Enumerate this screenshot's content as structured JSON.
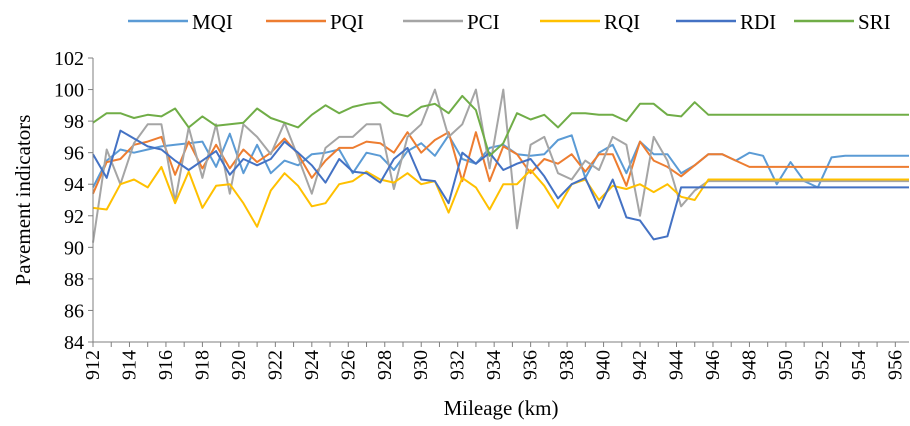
{
  "chart_data": {
    "type": "line",
    "xlabel": "Mileage (km)",
    "ylabel": "Pavement indicators",
    "xlim": [
      912,
      956.75
    ],
    "ylim": [
      84,
      102
    ],
    "y_ticks": [
      84,
      86,
      88,
      90,
      92,
      94,
      96,
      98,
      100,
      102
    ],
    "y_tick_labels": [
      "84",
      "86",
      "88",
      "90",
      "92",
      "94",
      "96",
      "98",
      "100",
      "102"
    ],
    "x_ticks": [
      912,
      914,
      916,
      918,
      920,
      922,
      924,
      926,
      928,
      930,
      932,
      934,
      936,
      938,
      940,
      942,
      944,
      946,
      948,
      950,
      952,
      954,
      956
    ],
    "x_tick_labels": [
      "912",
      "914",
      "916",
      "918",
      "920",
      "922",
      "924",
      "926",
      "928",
      "930",
      "932",
      "934",
      "936",
      "938",
      "940",
      "942",
      "944",
      "946",
      "948",
      "950",
      "952",
      "954",
      "956"
    ],
    "grid": false,
    "legend_position": "top",
    "x": [
      912,
      912.75,
      913.5,
      914.25,
      915,
      915.75,
      916.5,
      917.25,
      918,
      918.75,
      919.5,
      920.25,
      921,
      921.75,
      922.5,
      923.25,
      924,
      924.75,
      925.5,
      926.25,
      927,
      927.75,
      928.5,
      929.25,
      930,
      930.75,
      931.5,
      932.25,
      933,
      933.75,
      934.5,
      935.25,
      936,
      936.75,
      937.5,
      938.25,
      939,
      939.75,
      940.5,
      941.25,
      942,
      942.75,
      943.5,
      944.25,
      945,
      945.75,
      946.5,
      947.25,
      948,
      948.75,
      949.5,
      950.25,
      951,
      951.75,
      952.5,
      953.25,
      954,
      954.75,
      955.5,
      956.25,
      956.75
    ],
    "series": [
      {
        "name": "MQI",
        "color": "#5b9bd5",
        "values": [
          93.8,
          95.5,
          96.2,
          96.0,
          96.2,
          96.4,
          96.5,
          96.6,
          96.7,
          95.1,
          97.2,
          94.7,
          96.5,
          94.7,
          95.5,
          95.2,
          95.9,
          96.0,
          96.2,
          94.7,
          96.0,
          95.8,
          94.9,
          96.1,
          96.6,
          95.8,
          97.1,
          95.6,
          95.3,
          96.3,
          96.5,
          95.9,
          95.8,
          95.9,
          96.8,
          97.1,
          94.4,
          96.0,
          96.5,
          94.7,
          96.7,
          95.9,
          95.9,
          94.7,
          95.2,
          95.9,
          95.9,
          95.5,
          96.0,
          95.8,
          94.0,
          95.4,
          94.2,
          93.8,
          95.7,
          95.8,
          95.8,
          95.8,
          95.8,
          95.8,
          95.8
        ]
      },
      {
        "name": "PQI",
        "color": "#ed7d31",
        "values": [
          93.4,
          95.4,
          95.6,
          96.5,
          96.7,
          97.0,
          94.6,
          96.7,
          95.0,
          96.5,
          95.0,
          96.2,
          95.4,
          96.0,
          96.9,
          95.9,
          94.4,
          95.5,
          96.3,
          96.3,
          96.7,
          96.6,
          96.0,
          97.3,
          96.0,
          96.8,
          97.3,
          94.2,
          97.3,
          94.2,
          96.4,
          95.9,
          94.7,
          95.6,
          95.3,
          95.9,
          94.8,
          95.9,
          95.9,
          93.9,
          96.7,
          95.5,
          95.1,
          94.5,
          95.2,
          95.9,
          95.9,
          95.5,
          95.1,
          95.1,
          95.1,
          95.1,
          95.1,
          95.1,
          95.1,
          95.1,
          95.1,
          95.1,
          95.1,
          95.1,
          95.1
        ]
      },
      {
        "name": "PCI",
        "color": "#a5a5a5",
        "values": [
          90.3,
          96.2,
          94.0,
          96.6,
          97.8,
          97.8,
          92.9,
          97.6,
          94.4,
          97.8,
          93.4,
          97.8,
          97.0,
          95.9,
          97.9,
          95.7,
          93.4,
          96.3,
          97.0,
          97.0,
          97.8,
          97.8,
          93.7,
          97.0,
          97.8,
          100.0,
          97.0,
          97.8,
          100.0,
          95.0,
          100.0,
          91.2,
          96.5,
          97.0,
          94.7,
          94.3,
          95.5,
          94.9,
          97.0,
          96.5,
          92.0,
          97.0,
          95.5,
          92.6,
          93.6,
          94.2,
          94.2,
          94.2,
          94.2,
          94.2,
          94.2,
          94.2,
          94.2,
          94.2,
          94.2,
          94.2,
          94.2,
          94.2,
          94.2,
          94.2,
          94.2
        ]
      },
      {
        "name": "RQI",
        "color": "#ffc000",
        "values": [
          92.5,
          92.4,
          94.0,
          94.3,
          93.8,
          95.1,
          92.8,
          94.8,
          92.5,
          93.9,
          94.0,
          92.8,
          91.3,
          93.6,
          94.7,
          93.9,
          92.6,
          92.8,
          94.0,
          94.2,
          94.8,
          94.3,
          94.1,
          94.7,
          94.0,
          94.2,
          92.2,
          94.4,
          93.8,
          92.4,
          94.0,
          94.0,
          94.9,
          93.9,
          92.5,
          94.0,
          94.3,
          93.0,
          93.9,
          93.7,
          94.0,
          93.5,
          94.0,
          93.2,
          93.0,
          94.3,
          94.3,
          94.3,
          94.3,
          94.3,
          94.3,
          94.3,
          94.3,
          94.3,
          94.3,
          94.3,
          94.3,
          94.3,
          94.3,
          94.3,
          94.3
        ]
      },
      {
        "name": "RDI",
        "color": "#4472c4",
        "values": [
          95.9,
          94.4,
          97.4,
          96.9,
          96.4,
          96.2,
          95.5,
          94.9,
          95.5,
          96.1,
          94.6,
          95.6,
          95.2,
          95.6,
          96.7,
          96.0,
          95.2,
          94.1,
          95.6,
          94.8,
          94.7,
          94.1,
          95.6,
          96.3,
          94.3,
          94.2,
          92.8,
          96.0,
          95.3,
          96.0,
          94.9,
          95.3,
          95.6,
          94.5,
          93.1,
          94.0,
          94.4,
          92.5,
          94.3,
          91.9,
          91.7,
          90.5,
          90.7,
          93.8,
          93.8,
          93.8,
          93.8,
          93.8,
          93.8,
          93.8,
          93.8,
          93.8,
          93.8,
          93.8,
          93.8,
          93.8,
          93.8,
          93.8,
          93.8,
          93.8,
          93.8
        ]
      },
      {
        "name": "SRI",
        "color": "#70ad47",
        "values": [
          97.9,
          98.5,
          98.5,
          98.2,
          98.4,
          98.3,
          98.8,
          97.6,
          98.3,
          97.7,
          97.8,
          97.9,
          98.8,
          98.2,
          97.9,
          97.6,
          98.4,
          99.0,
          98.5,
          98.9,
          99.1,
          99.2,
          98.5,
          98.3,
          98.9,
          99.1,
          98.5,
          99.6,
          98.7,
          95.8,
          96.6,
          98.5,
          98.1,
          98.4,
          97.6,
          98.5,
          98.5,
          98.4,
          98.4,
          98.0,
          99.1,
          99.1,
          98.4,
          98.3,
          99.2,
          98.4,
          98.4,
          98.4,
          98.4,
          98.4,
          98.4,
          98.4,
          98.4,
          98.4,
          98.4,
          98.4,
          98.4,
          98.4,
          98.4,
          98.4,
          98.4
        ]
      }
    ]
  }
}
